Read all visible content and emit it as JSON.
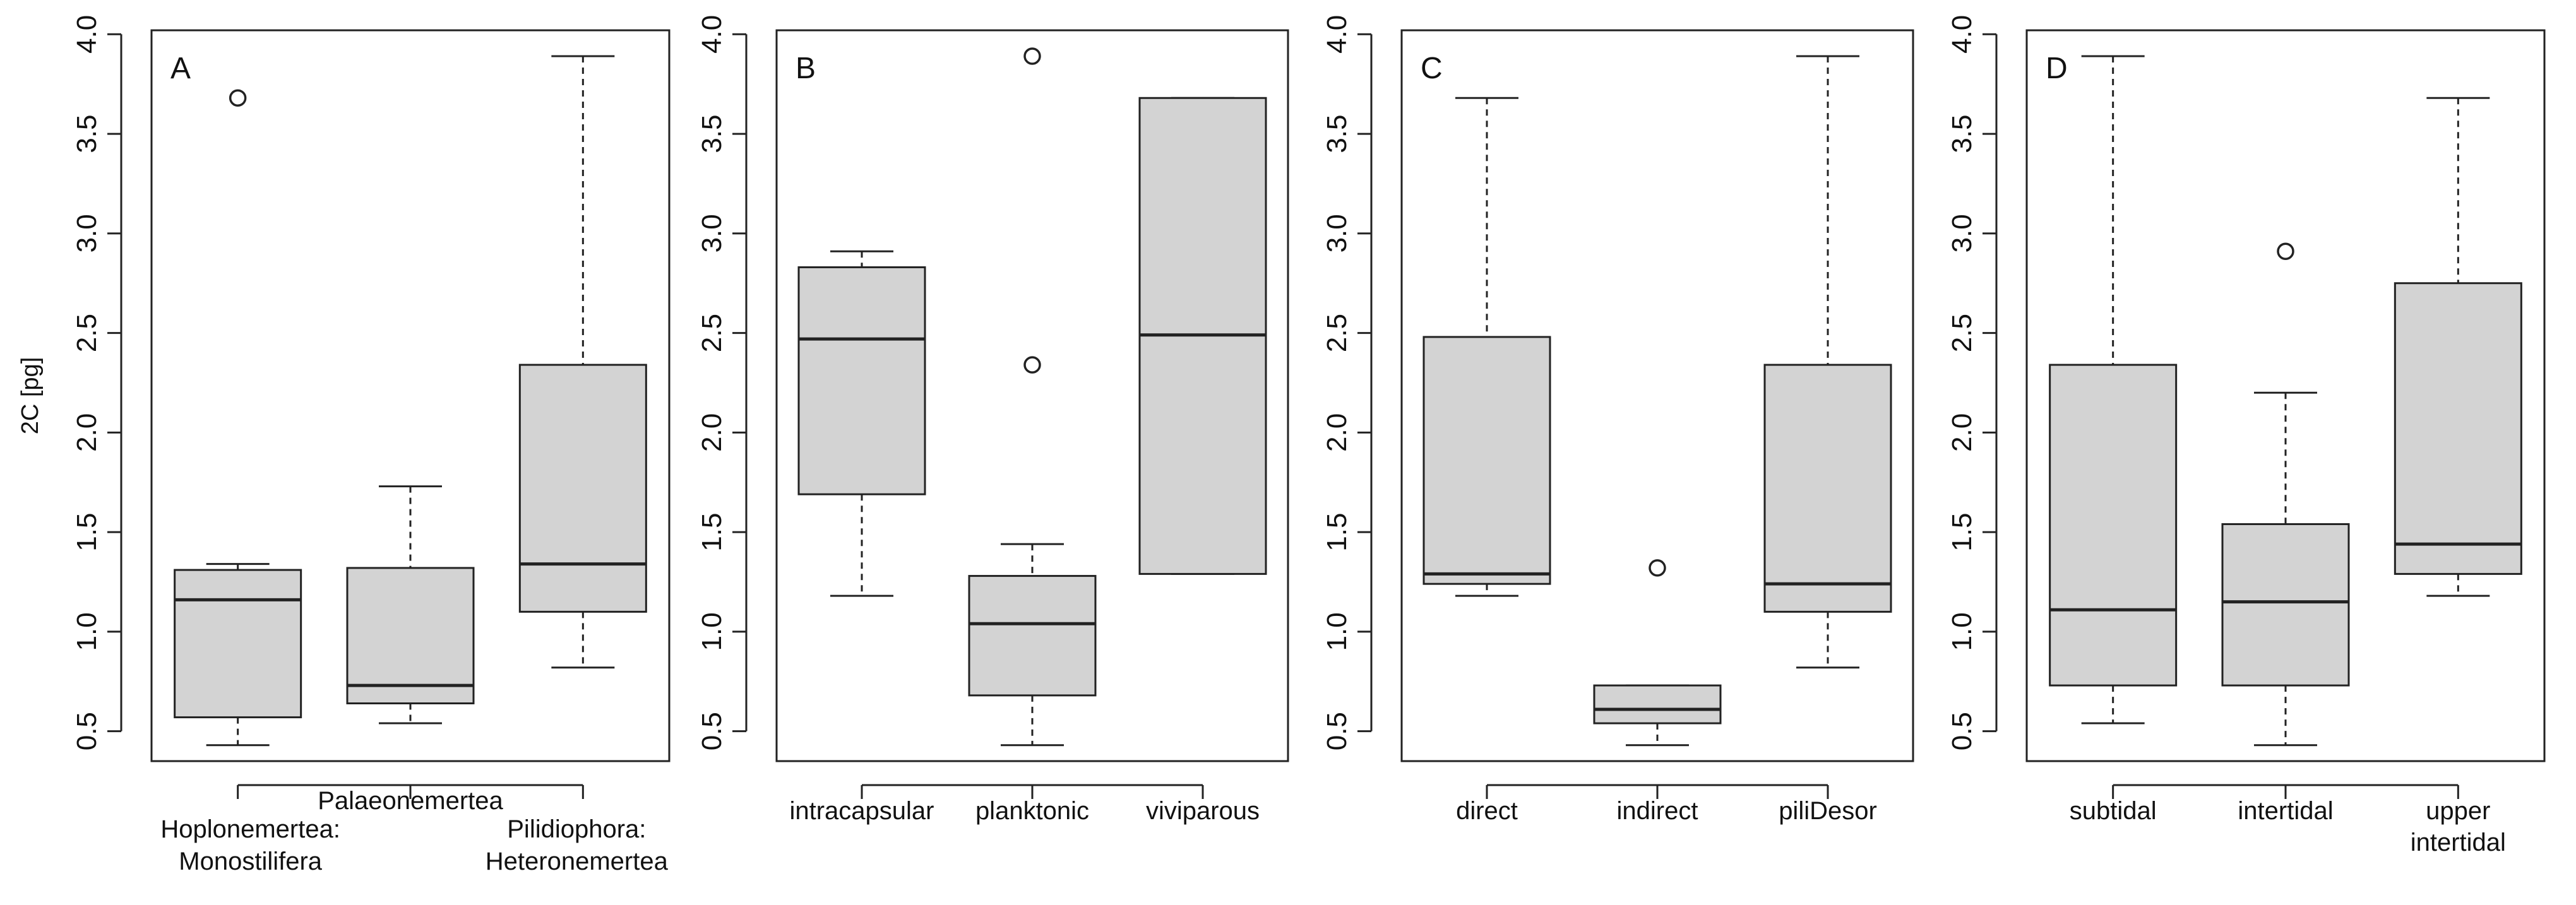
{
  "chart_data": [
    {
      "type": "boxplot",
      "panel_label": "A",
      "ylabel": "2C [pg]",
      "yticks": [
        "0.5",
        "1.0",
        "1.5",
        "2.0",
        "2.5",
        "3.0",
        "3.5",
        "4.0"
      ],
      "ylim": [
        0.35,
        4.02
      ],
      "category_lines": [
        [
          "Hoplonemertea:",
          "Monostilifera"
        ],
        [
          "Palaeonemertea"
        ],
        [
          "Pilidiophora:",
          "Heteronemertea"
        ]
      ],
      "boxes": [
        {
          "low": 0.43,
          "q1": 0.57,
          "median": 1.16,
          "q3": 1.31,
          "high": 1.34,
          "outliers": [
            3.68
          ]
        },
        {
          "low": 0.54,
          "q1": 0.64,
          "median": 0.73,
          "q3": 1.32,
          "high": 1.73,
          "outliers": []
        },
        {
          "low": 0.82,
          "q1": 1.1,
          "median": 1.34,
          "q3": 2.34,
          "high": 3.89,
          "outliers": []
        }
      ]
    },
    {
      "type": "boxplot",
      "panel_label": "B",
      "yticks": [
        "0.5",
        "1.0",
        "1.5",
        "2.0",
        "2.5",
        "3.0",
        "3.5",
        "4.0"
      ],
      "ylim": [
        0.35,
        4.02
      ],
      "category_lines": [
        [
          "intracapsular"
        ],
        [
          "planktonic"
        ],
        [
          "viviparous"
        ]
      ],
      "boxes": [
        {
          "low": 1.18,
          "q1": 1.69,
          "median": 2.47,
          "q3": 2.83,
          "high": 2.91,
          "outliers": []
        },
        {
          "low": 0.43,
          "q1": 0.68,
          "median": 1.04,
          "q3": 1.28,
          "high": 1.44,
          "outliers": [
            2.34,
            3.89
          ]
        },
        {
          "low": 1.29,
          "q1": 1.29,
          "median": 2.49,
          "q3": 3.68,
          "high": 3.68,
          "outliers": []
        }
      ]
    },
    {
      "type": "boxplot",
      "panel_label": "C",
      "yticks": [
        "0.5",
        "1.0",
        "1.5",
        "2.0",
        "2.5",
        "3.0",
        "3.5",
        "4.0"
      ],
      "ylim": [
        0.35,
        4.02
      ],
      "category_lines": [
        [
          "direct"
        ],
        [
          "indirect"
        ],
        [
          "piliDesor"
        ]
      ],
      "boxes": [
        {
          "low": 1.18,
          "q1": 1.24,
          "median": 1.29,
          "q3": 2.48,
          "high": 3.68,
          "outliers": []
        },
        {
          "low": 0.43,
          "q1": 0.54,
          "median": 0.61,
          "q3": 0.73,
          "high": 0.73,
          "outliers": [
            1.32
          ]
        },
        {
          "low": 0.82,
          "q1": 1.1,
          "median": 1.24,
          "q3": 2.34,
          "high": 3.89,
          "outliers": []
        }
      ]
    },
    {
      "type": "boxplot",
      "panel_label": "D",
      "yticks": [
        "0.5",
        "1.0",
        "1.5",
        "2.0",
        "2.5",
        "3.0",
        "3.5",
        "4.0"
      ],
      "ylim": [
        0.35,
        4.02
      ],
      "category_lines": [
        [
          "subtidal"
        ],
        [
          "intertidal"
        ],
        [
          "upper",
          "intertidal"
        ]
      ],
      "boxes": [
        {
          "low": 0.54,
          "q1": 0.73,
          "median": 1.11,
          "q3": 2.34,
          "high": 3.89,
          "outliers": []
        },
        {
          "low": 0.43,
          "q1": 0.73,
          "median": 1.15,
          "q3": 1.54,
          "high": 2.2,
          "outliers": [
            2.91
          ]
        },
        {
          "low": 1.18,
          "q1": 1.29,
          "median": 1.44,
          "q3": 2.75,
          "high": 3.68,
          "outliers": []
        }
      ]
    }
  ]
}
